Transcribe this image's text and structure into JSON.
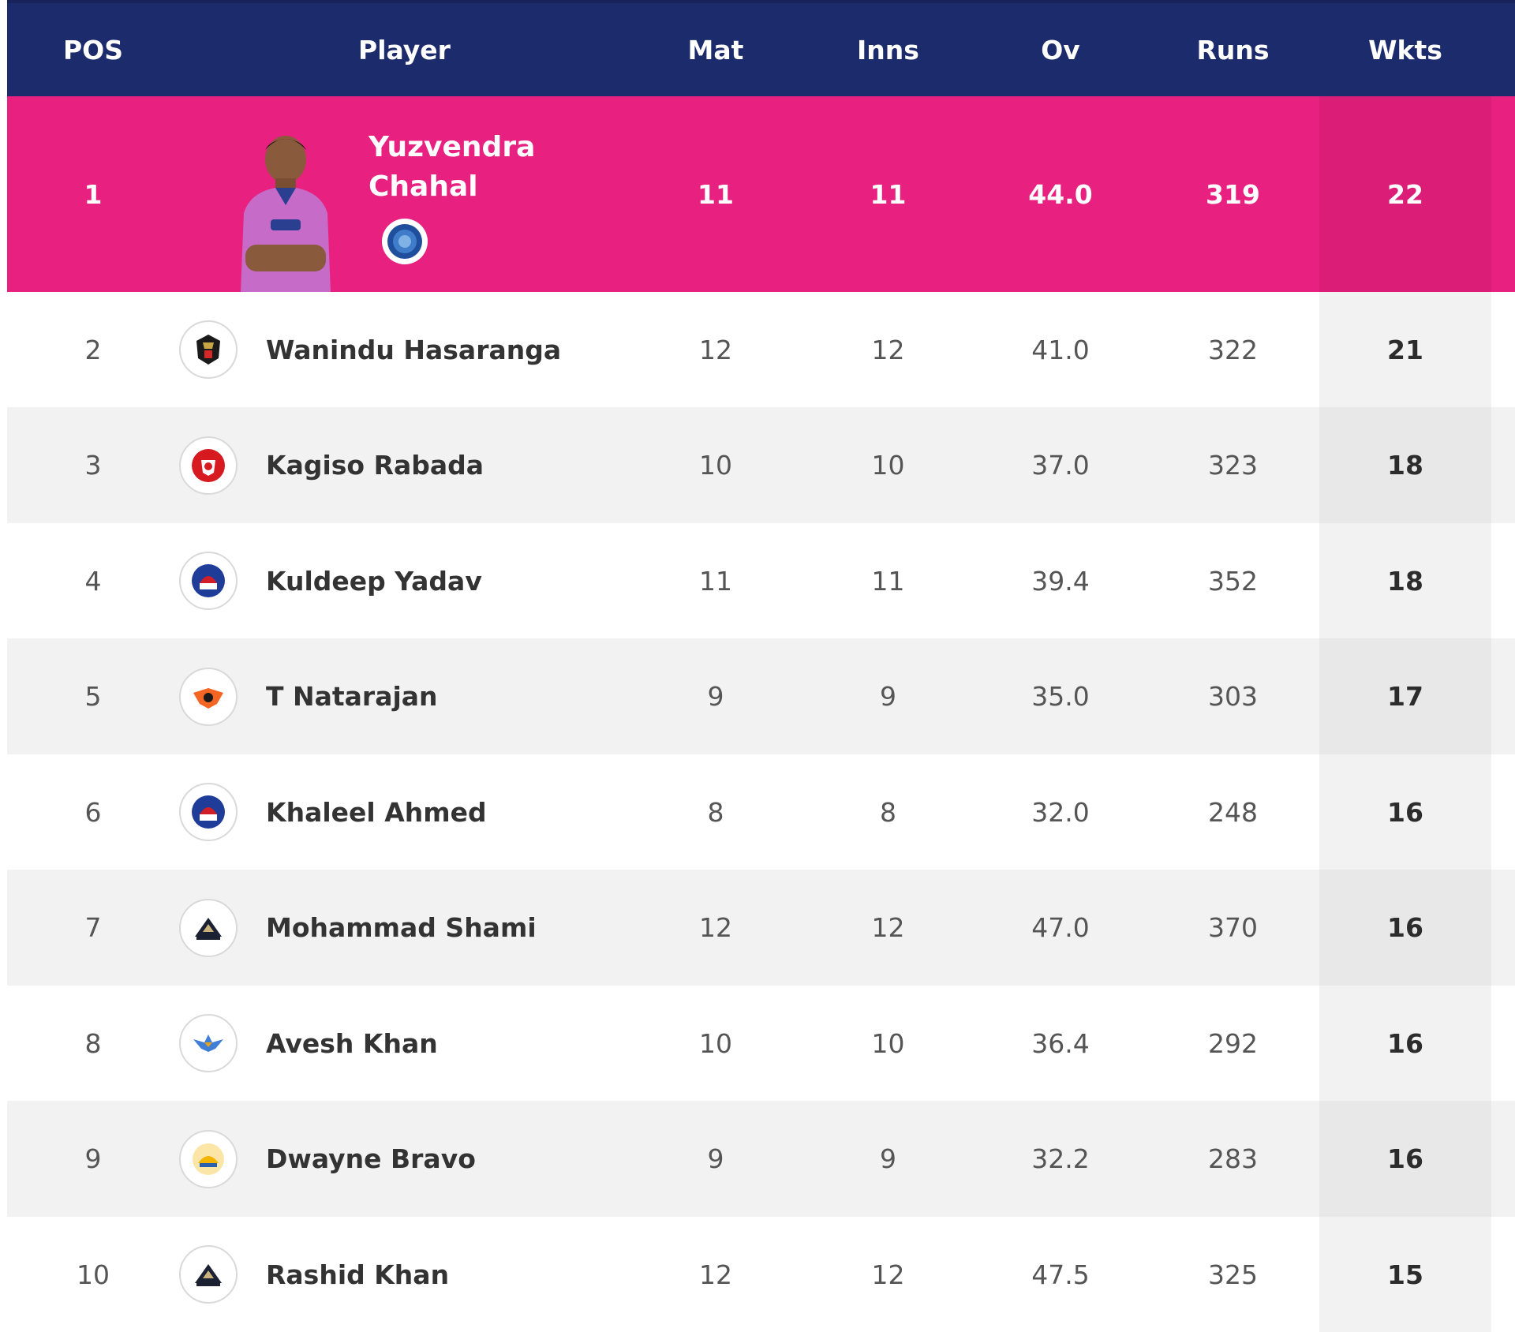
{
  "headers": {
    "pos": "POS",
    "player": "Player",
    "mat": "Mat",
    "inns": "Inns",
    "ov": "Ov",
    "runs": "Runs",
    "wkts": "Wkts"
  },
  "colors": {
    "header_bg": "#1c2b6b",
    "leader_bg": "#e8207f"
  },
  "rows": [
    {
      "pos": "1",
      "player": "Yuzvendra Chahal",
      "mat": "11",
      "inns": "11",
      "ov": "44.0",
      "runs": "319",
      "wkts": "22",
      "team_icon": "rajasthan-royals-logo-icon"
    },
    {
      "pos": "2",
      "player": "Wanindu Hasaranga",
      "mat": "12",
      "inns": "12",
      "ov": "41.0",
      "runs": "322",
      "wkts": "21",
      "team_icon": "rcb-logo-icon"
    },
    {
      "pos": "3",
      "player": "Kagiso Rabada",
      "mat": "10",
      "inns": "10",
      "ov": "37.0",
      "runs": "323",
      "wkts": "18",
      "team_icon": "punjab-kings-logo-icon"
    },
    {
      "pos": "4",
      "player": "Kuldeep Yadav",
      "mat": "11",
      "inns": "11",
      "ov": "39.4",
      "runs": "352",
      "wkts": "18",
      "team_icon": "delhi-capitals-logo-icon"
    },
    {
      "pos": "5",
      "player": "T Natarajan",
      "mat": "9",
      "inns": "9",
      "ov": "35.0",
      "runs": "303",
      "wkts": "17",
      "team_icon": "sunrisers-hyderabad-logo-icon"
    },
    {
      "pos": "6",
      "player": "Khaleel Ahmed",
      "mat": "8",
      "inns": "8",
      "ov": "32.0",
      "runs": "248",
      "wkts": "16",
      "team_icon": "delhi-capitals-logo-icon"
    },
    {
      "pos": "7",
      "player": "Mohammad Shami",
      "mat": "12",
      "inns": "12",
      "ov": "47.0",
      "runs": "370",
      "wkts": "16",
      "team_icon": "gujarat-titans-logo-icon"
    },
    {
      "pos": "8",
      "player": "Avesh Khan",
      "mat": "10",
      "inns": "10",
      "ov": "36.4",
      "runs": "292",
      "wkts": "16",
      "team_icon": "lucknow-super-giants-logo-icon"
    },
    {
      "pos": "9",
      "player": "Dwayne Bravo",
      "mat": "9",
      "inns": "9",
      "ov": "32.2",
      "runs": "283",
      "wkts": "16",
      "team_icon": "chennai-super-kings-logo-icon"
    },
    {
      "pos": "10",
      "player": "Rashid Khan",
      "mat": "12",
      "inns": "12",
      "ov": "47.5",
      "runs": "325",
      "wkts": "15",
      "team_icon": "gujarat-titans-logo-icon"
    }
  ]
}
